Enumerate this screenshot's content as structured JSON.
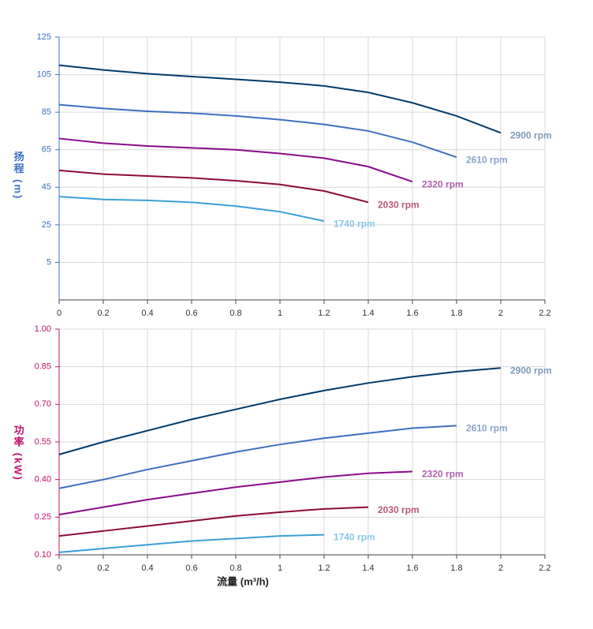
{
  "chart_data": [
    {
      "type": "line",
      "y_label": "扬程 (m)",
      "axis_color": "#3d6fc4",
      "grid": true,
      "x": [
        0,
        0.2,
        0.4,
        0.6,
        0.8,
        1.0,
        1.2,
        1.4,
        1.6,
        1.8,
        2.0
      ],
      "xlim": [
        0,
        2.2
      ],
      "xticks": [
        0,
        0.2,
        0.4,
        0.6,
        0.8,
        1,
        1.2,
        1.4,
        1.6,
        1.8,
        2,
        2.2
      ],
      "ylim": [
        -15,
        125
      ],
      "yticks": [
        5,
        25,
        45,
        65,
        85,
        105,
        125
      ],
      "series": [
        {
          "name": "2900 rpm",
          "color": "#003a6b",
          "label_color": "#7f9ab5",
          "values": [
            110,
            107.5,
            105.5,
            104,
            102.5,
            101,
            99,
            95.5,
            90,
            83,
            74
          ]
        },
        {
          "name": "2610 rpm",
          "color": "#3e6fbf",
          "label_color": "#8aa4cc",
          "values": [
            89,
            87,
            85.5,
            84.5,
            83,
            81,
            78.5,
            75,
            69,
            61,
            null
          ]
        },
        {
          "name": "2320 rpm",
          "color": "#8b0a8b",
          "label_color": "#b060b0",
          "values": [
            71,
            68.5,
            67,
            66,
            65,
            63,
            60.5,
            56,
            48,
            null,
            null
          ]
        },
        {
          "name": "2030 rpm",
          "color": "#8b0a3a",
          "label_color": "#b85a7a",
          "values": [
            54,
            52,
            51,
            50,
            48.5,
            46.5,
            43,
            37,
            null,
            null,
            null
          ]
        },
        {
          "name": "1740 rpm",
          "color": "#3aa0d8",
          "label_color": "#86c6ea",
          "values": [
            40,
            38.5,
            38,
            37,
            35,
            32,
            27,
            null,
            null,
            null,
            null
          ]
        }
      ]
    },
    {
      "type": "line",
      "y_label": "功率 (kW)",
      "x_label": "流量 (m³/h)",
      "axis_color": "#c0106a",
      "grid": true,
      "x": [
        0,
        0.2,
        0.4,
        0.6,
        0.8,
        1.0,
        1.2,
        1.4,
        1.6,
        1.8,
        2.0
      ],
      "xlim": [
        0,
        2.2
      ],
      "xticks": [
        0,
        0.2,
        0.4,
        0.6,
        0.8,
        1,
        1.2,
        1.4,
        1.6,
        1.8,
        2,
        2.2
      ],
      "ylim": [
        0.1,
        1.0
      ],
      "yticks": [
        {
          "value": 0.1,
          "label": "0.10"
        },
        0.25,
        {
          "value": 0.4,
          "label": "0.40"
        },
        0.55,
        {
          "value": 0.7,
          "label": "0.70"
        },
        0.85,
        {
          "value": 1.0,
          "label": "1.00"
        }
      ],
      "series": [
        {
          "name": "2900 rpm",
          "color": "#003a6b",
          "label_color": "#7f9ab5",
          "values": [
            0.5,
            0.55,
            0.595,
            0.64,
            0.68,
            0.72,
            0.755,
            0.785,
            0.81,
            0.83,
            0.845
          ]
        },
        {
          "name": "2610 rpm",
          "color": "#3e6fbf",
          "label_color": "#8aa4cc",
          "values": [
            0.365,
            0.4,
            0.44,
            0.475,
            0.51,
            0.54,
            0.565,
            0.585,
            0.605,
            0.615,
            null
          ]
        },
        {
          "name": "2320 rpm",
          "color": "#8b0a8b",
          "label_color": "#b060b0",
          "values": [
            0.26,
            0.29,
            0.32,
            0.345,
            0.37,
            0.39,
            0.41,
            0.425,
            0.432,
            null,
            null
          ]
        },
        {
          "name": "2030 rpm",
          "color": "#8b0a3a",
          "label_color": "#b85a7a",
          "values": [
            0.175,
            0.195,
            0.215,
            0.235,
            0.255,
            0.27,
            0.283,
            0.29,
            null,
            null,
            null
          ]
        },
        {
          "name": "1740 rpm",
          "color": "#3aa0d8",
          "label_color": "#86c6ea",
          "values": [
            0.11,
            0.125,
            0.14,
            0.155,
            0.165,
            0.175,
            0.18,
            null,
            null,
            null,
            null
          ]
        }
      ]
    }
  ]
}
